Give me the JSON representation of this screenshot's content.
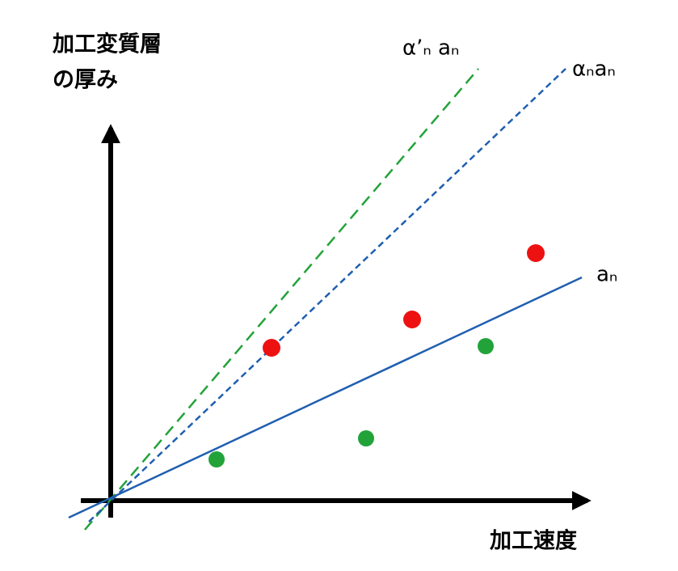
{
  "y_axis": {
    "title_lines": [
      "加工変質層",
      "の厚み"
    ]
  },
  "x_axis": {
    "title": "加工速度"
  },
  "lines": [
    {
      "label": "α’ₙ aₙ"
    },
    {
      "label": "αₙaₙ"
    },
    {
      "label": "aₙ"
    }
  ]
}
